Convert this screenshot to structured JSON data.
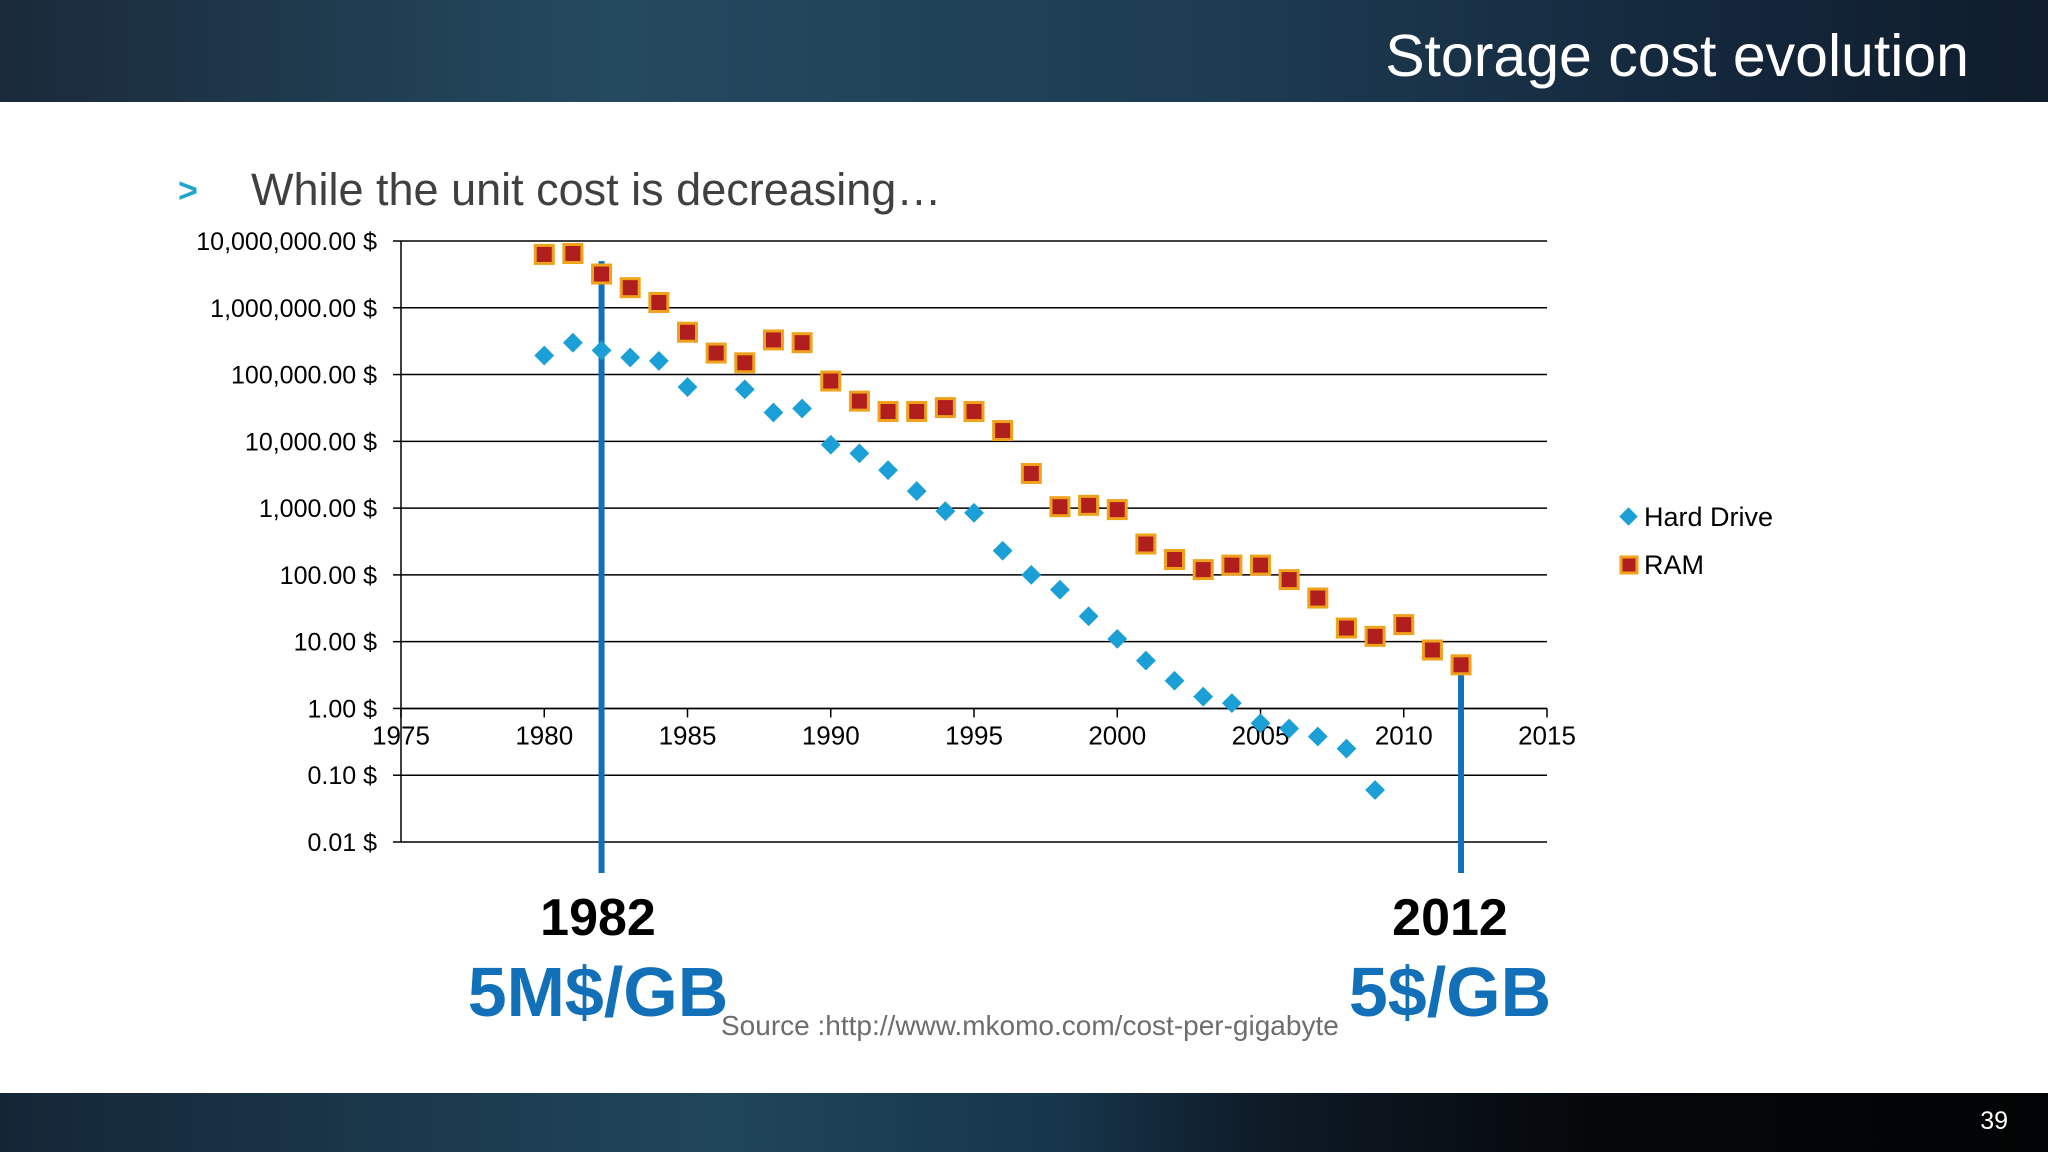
{
  "slide": {
    "title": "Storage cost evolution",
    "page_number": "39",
    "bullet_marker": ">",
    "bullet_text": "While the unit cost is decreasing…",
    "source": "Source :http://www.mkomo.com/cost-per-gigabyte"
  },
  "annotations": [
    {
      "year": 1982,
      "year_label": "1982",
      "cost_label": "5M$/GB",
      "value": 5000000
    },
    {
      "year": 2012,
      "year_label": "2012",
      "cost_label": "5$/GB",
      "value": 5
    }
  ],
  "colors": {
    "hard_drive": "#1a9fd6",
    "ram_fill": "#b01e1e",
    "ram_border": "#f1a21c",
    "annotation_line": "#1170b8",
    "grid": "#000000"
  },
  "chart_data": {
    "type": "scatter",
    "title": "",
    "xlabel": "",
    "ylabel": "",
    "x_scale": "linear",
    "y_scale": "log",
    "xlim": [
      1975,
      2015
    ],
    "ylim": [
      0.01,
      10000000
    ],
    "x_ticks": [
      1975,
      1980,
      1985,
      1990,
      1995,
      2000,
      2005,
      2010,
      2015
    ],
    "x_tick_labels": [
      "1975",
      "1980",
      "1985",
      "1990",
      "1995",
      "2000",
      "2005",
      "2010",
      "2015"
    ],
    "y_ticks": [
      0.01,
      0.1,
      1,
      10,
      100,
      1000,
      10000,
      100000,
      1000000,
      10000000
    ],
    "y_tick_labels": [
      "0.01 $",
      "0.10 $",
      "1.00 $",
      "10.00 $",
      "100.00 $",
      "1,000.00 $",
      "10,000.00 $",
      "100,000.00 $",
      "1,000,000.00 $",
      "10,000,000.00 $"
    ],
    "x_axis_crosses_y": 1,
    "grid": "horizontal",
    "legend_position": "right",
    "series": [
      {
        "name": "Hard Drive",
        "marker": "diamond",
        "points": [
          [
            1980,
            193000
          ],
          [
            1981,
            300000
          ],
          [
            1982,
            230000
          ],
          [
            1983,
            180000
          ],
          [
            1984,
            160000
          ],
          [
            1985,
            65000
          ],
          [
            1987,
            60000
          ],
          [
            1988,
            27000
          ],
          [
            1989,
            31000
          ],
          [
            1990,
            8900
          ],
          [
            1991,
            6600
          ],
          [
            1992,
            3700
          ],
          [
            1993,
            1800
          ],
          [
            1994,
            900
          ],
          [
            1995,
            850
          ],
          [
            1996,
            230
          ],
          [
            1997,
            100
          ],
          [
            1998,
            60
          ],
          [
            1999,
            24
          ],
          [
            2000,
            11
          ],
          [
            2001,
            5.2
          ],
          [
            2002,
            2.6
          ],
          [
            2003,
            1.5
          ],
          [
            2004,
            1.2
          ],
          [
            2005,
            0.6
          ],
          [
            2006,
            0.5
          ],
          [
            2007,
            0.38
          ],
          [
            2008,
            0.25
          ],
          [
            2009,
            0.06
          ]
        ]
      },
      {
        "name": "RAM",
        "marker": "square",
        "points": [
          [
            1980,
            6300000
          ],
          [
            1981,
            6500000
          ],
          [
            1982,
            3200000
          ],
          [
            1983,
            2000000
          ],
          [
            1984,
            1200000
          ],
          [
            1985,
            430000
          ],
          [
            1986,
            210000
          ],
          [
            1987,
            150000
          ],
          [
            1988,
            330000
          ],
          [
            1989,
            300000
          ],
          [
            1990,
            80000
          ],
          [
            1991,
            40000
          ],
          [
            1992,
            28000
          ],
          [
            1993,
            28000
          ],
          [
            1994,
            32000
          ],
          [
            1995,
            28000
          ],
          [
            1996,
            14500
          ],
          [
            1997,
            3300
          ],
          [
            1998,
            1050
          ],
          [
            1999,
            1100
          ],
          [
            2000,
            950
          ],
          [
            2001,
            290
          ],
          [
            2002,
            170
          ],
          [
            2003,
            120
          ],
          [
            2004,
            140
          ],
          [
            2005,
            140
          ],
          [
            2006,
            85
          ],
          [
            2007,
            45
          ],
          [
            2008,
            16
          ],
          [
            2009,
            12
          ],
          [
            2010,
            18
          ],
          [
            2011,
            7.5
          ],
          [
            2012,
            4.5
          ]
        ]
      }
    ]
  }
}
